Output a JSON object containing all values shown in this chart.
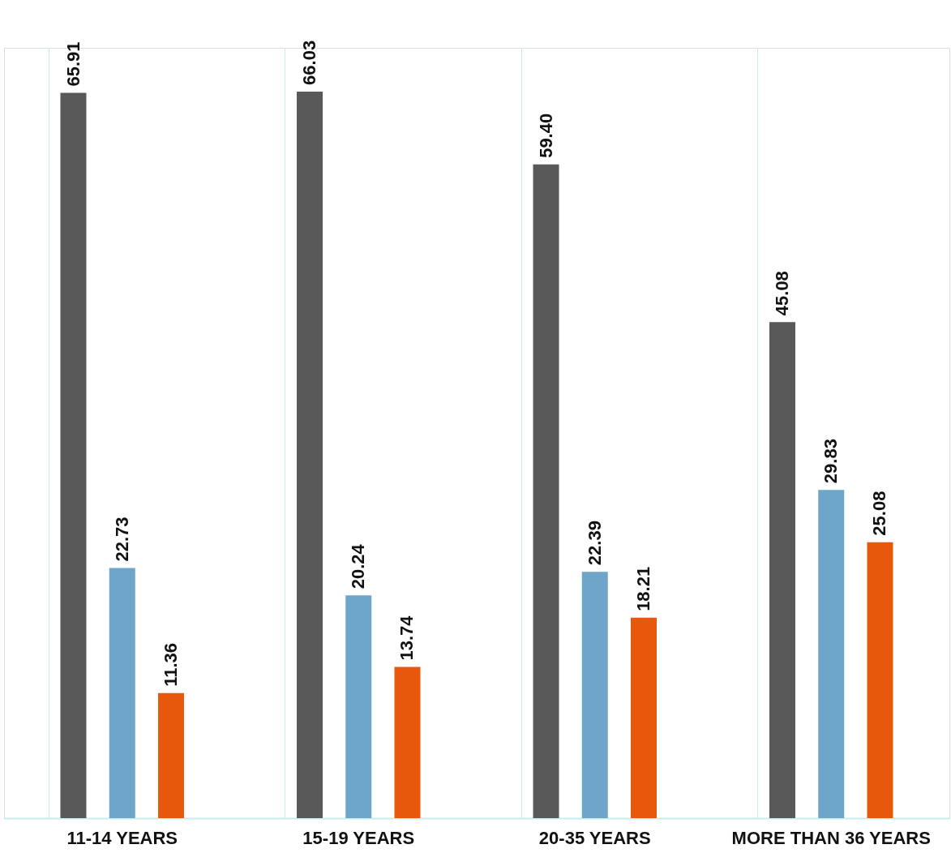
{
  "chart_data": {
    "type": "bar",
    "categories": [
      "11-14 YEARS",
      "15-19 YEARS",
      "20-35 YEARS",
      "MORE THAN 36 YEARS"
    ],
    "series": [
      {
        "color": "#595959",
        "values": [
          65.91,
          66.03,
          59.4,
          45.08
        ],
        "value_labels": [
          "65.91",
          "66.03",
          "59.40",
          "45.08"
        ]
      },
      {
        "color": "#6ea6c9",
        "values": [
          22.73,
          20.24,
          22.39,
          29.83
        ],
        "value_labels": [
          "22.73",
          "20.24",
          "22.39",
          "29.83"
        ]
      },
      {
        "color": "#e8580c",
        "values": [
          11.36,
          13.74,
          18.21,
          25.08
        ],
        "value_labels": [
          "11.36",
          "13.74",
          "18.21",
          "25.08"
        ]
      }
    ],
    "ylim": [
      0,
      70
    ],
    "tick_labels": "x",
    "grid": "x",
    "legend": false
  }
}
